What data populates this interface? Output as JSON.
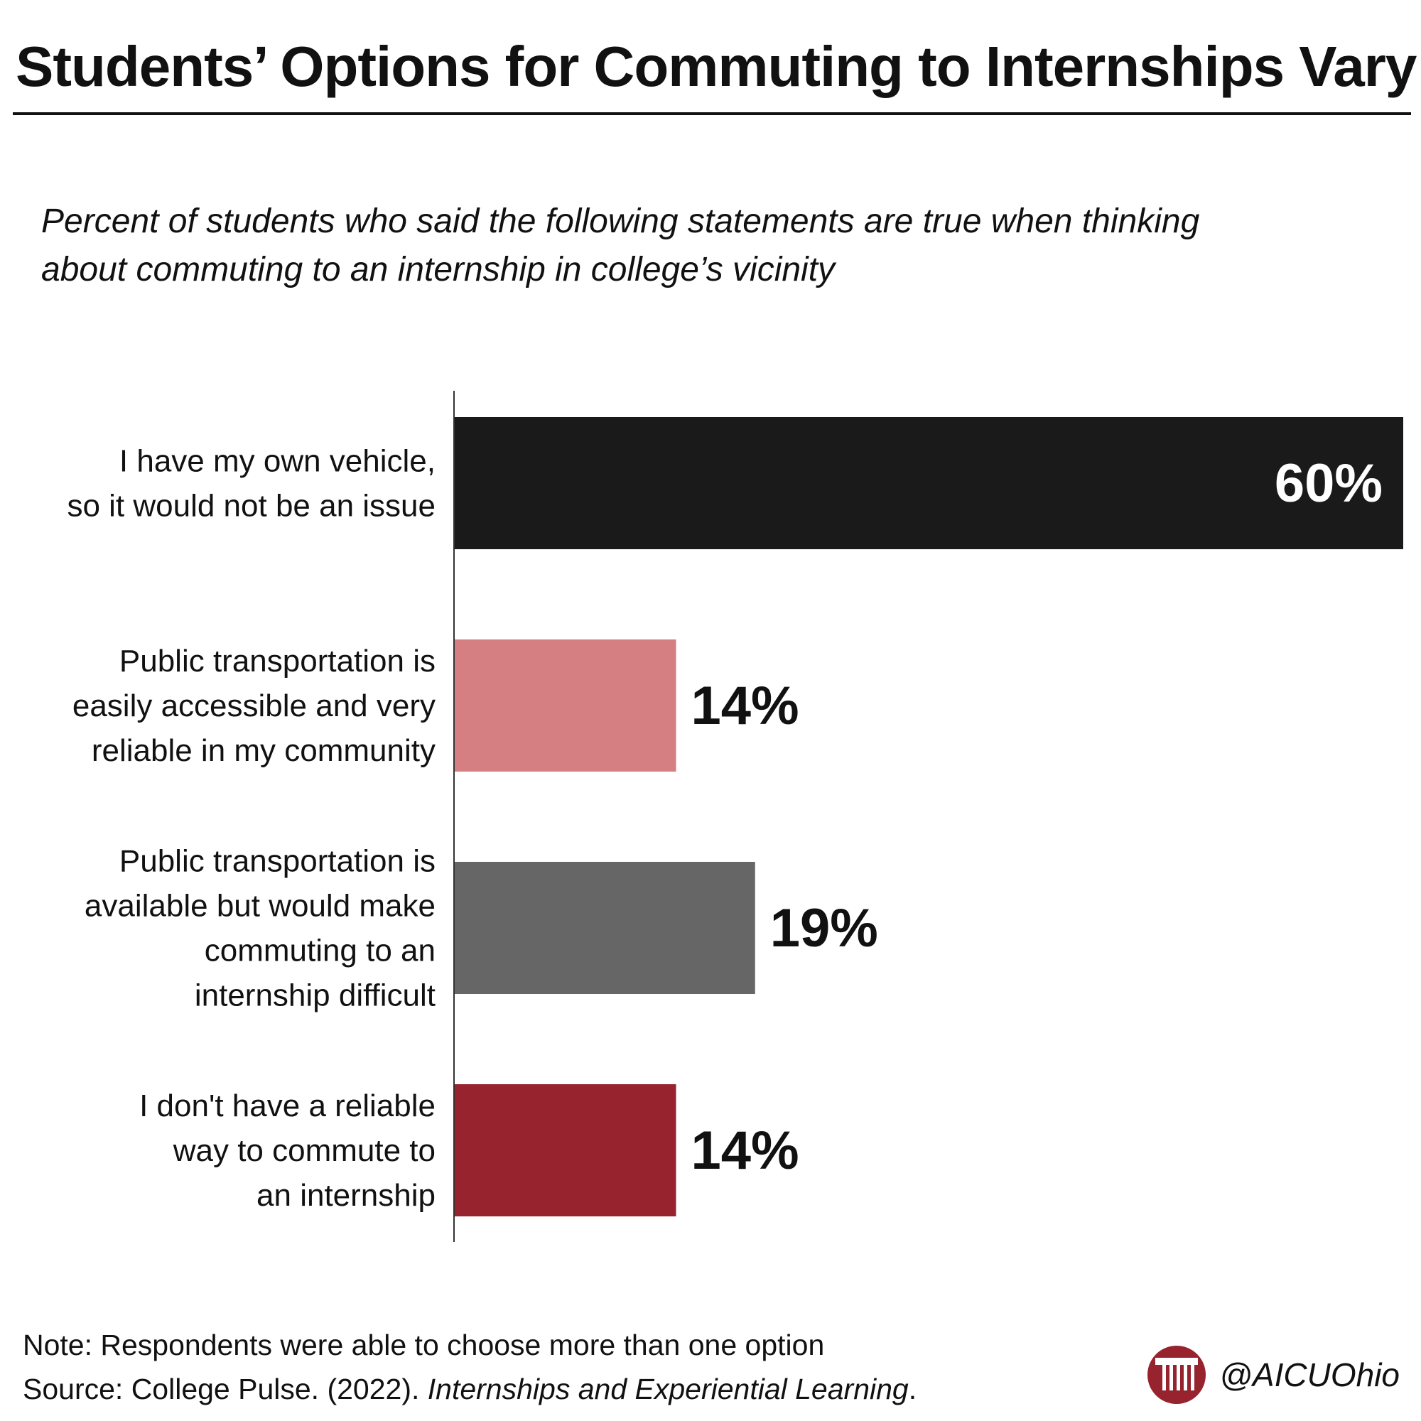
{
  "header": {
    "title": "Students’ Options for Commuting to Internships Vary"
  },
  "chart_data": {
    "type": "bar",
    "orientation": "horizontal",
    "title": "Students’ Options for Commuting to Internships Vary",
    "subtitle": "Percent of students who said the following statements are true when thinking about commuting to an internship in college’s vicinity",
    "xlim": [
      0,
      60
    ],
    "grid": false,
    "categories": [
      [
        "I have my own vehicle,",
        "so it would not be an issue"
      ],
      [
        "Public transportation is",
        "easily accessible and very",
        "reliable in my community"
      ],
      [
        "Public transportation is",
        "available but would make",
        "commuting to an",
        "internship difficult"
      ],
      [
        "I don't have a reliable",
        "way to commute to",
        "an internship"
      ]
    ],
    "values": [
      60,
      14,
      19,
      14
    ],
    "value_labels": [
      "60%",
      "14%",
      "19%",
      "14%"
    ],
    "colors": [
      "#1a1a1a",
      "#d67f82",
      "#666666",
      "#96232d"
    ]
  },
  "footer": {
    "note": "Note: Respondents were able to choose more than one option",
    "source_prefix": "Source: College Pulse. (2022). ",
    "source_title": "Internships and Experiential Learning",
    "source_suffix": "."
  },
  "brand": {
    "handle": "@AICUOhio",
    "logo_icon": "column-pillar-icon",
    "logo_color": "#96232d"
  }
}
